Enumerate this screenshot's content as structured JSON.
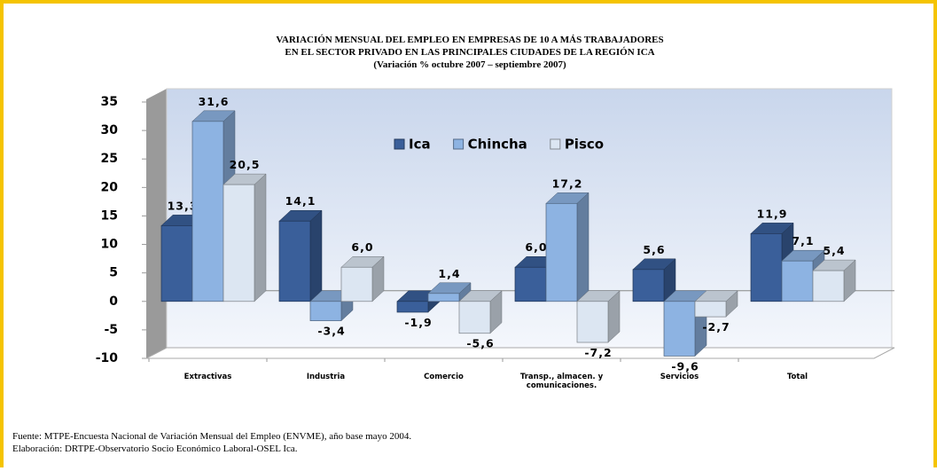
{
  "chart_data": {
    "type": "bar",
    "title": [
      "VARIACIÓN MENSUAL DEL EMPLEO EN EMPRESAS DE 10 A MÁS TRABAJADORES",
      "EN EL SECTOR PRIVADO EN LAS PRINCIPALES CIUDADES DE LA REGIÓN ICA",
      "(Variación % octubre 2007 – septiembre 2007)"
    ],
    "categories": [
      "Extractivas",
      "Industria",
      "Comercio",
      "Transp., almacen. y comunicaciones.",
      "Servicios",
      "Total"
    ],
    "series": [
      {
        "name": "Ica",
        "color": "#3a5f9a",
        "values": [
          13.3,
          14.1,
          -1.9,
          6.0,
          5.6,
          11.9
        ],
        "value_labels": [
          "13,3",
          "14,1",
          "-1,9",
          "6,0",
          "5,6",
          "11,9"
        ]
      },
      {
        "name": "Chincha",
        "color": "#8db3e2",
        "values": [
          31.6,
          -3.4,
          1.4,
          17.2,
          -9.6,
          7.1
        ],
        "value_labels": [
          "31,6",
          "-3,4",
          "1,4",
          "17,2",
          "-9,6",
          "7,1"
        ]
      },
      {
        "name": "Pisco",
        "color": "#dce6f2",
        "values": [
          20.5,
          6.0,
          -5.6,
          -7.2,
          -2.7,
          5.4
        ],
        "value_labels": [
          "20,5",
          "6,0",
          "-5,6",
          "-7,2",
          "-2,7",
          "5,4"
        ]
      }
    ],
    "ylim": [
      -10,
      35
    ],
    "yticks": [
      -10,
      -5,
      0,
      5,
      10,
      15,
      20,
      25,
      30,
      35
    ],
    "grid": false,
    "footnotes": [
      "Fuente: MTPE-Encuesta Nacional de Variación Mensual del Empleo (ENVME), año base mayo 2004.",
      "Elaboración: DRTPE-Observatorio Socio Económico Laboral-OSEL Ica."
    ]
  }
}
